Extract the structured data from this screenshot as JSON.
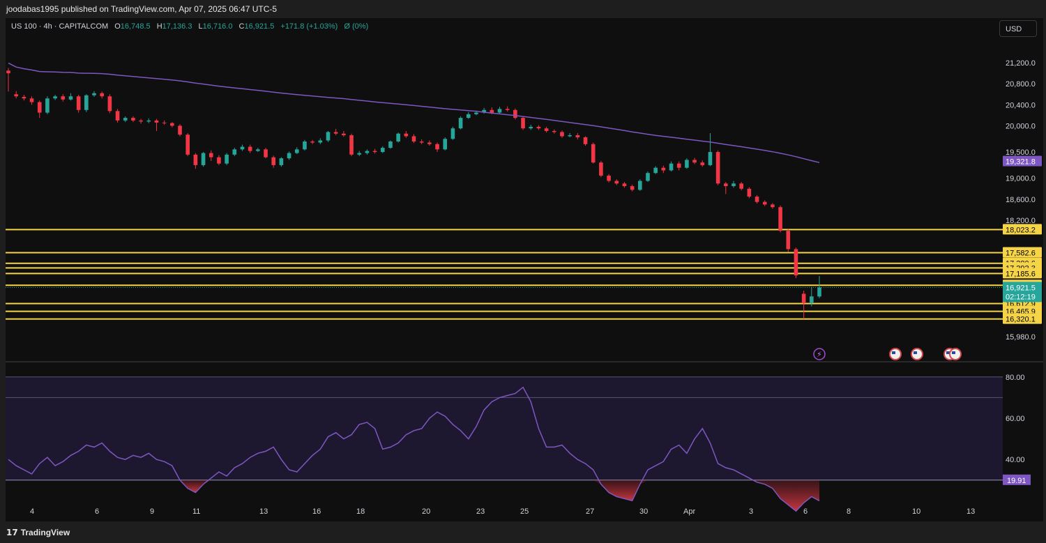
{
  "publish_info": "joodabas1995 published on TradingView.com, Apr 07, 2025 06:47 UTC-5",
  "legend": {
    "symbol": "US 100 · 4h · CAPITALCOM",
    "open_label": "O",
    "open": "16,748.5",
    "high_label": "H",
    "high": "17,136.3",
    "low_label": "L",
    "low": "16,716.0",
    "close_label": "C",
    "close": "16,921.5",
    "change": "+171.8 (+1.03%)",
    "extra": "Ø (0%)"
  },
  "currency_button": "USD",
  "footer_brand": "TradingView",
  "colors": {
    "background": "#0f0f0f",
    "candle_up": "#26a69a",
    "candle_down": "#f23645",
    "ma_line": "#7e57c2",
    "levels": "#f5d547",
    "rsi_line": "#7e57c2",
    "rsi_oversold_fill": "#b22833",
    "price_badge": "#26a69a"
  },
  "icons": [
    "lightning-icon",
    "us-flag-icon"
  ],
  "chart_data": {
    "type": "candlestick",
    "price_axis_ticks": [
      "21,200.0",
      "20,800.0",
      "20,400.0",
      "20,000.0",
      "19,500.0",
      "19,000.0",
      "18,600.0",
      "18,200.0",
      "15,980.0"
    ],
    "ma_label": "19,321.8",
    "horizontal_levels": [
      "18,023.2",
      "17,582.6",
      "17,380.6",
      "17,292.3",
      "17,185.6",
      "16,961.8",
      "16,612.9",
      "16,465.9",
      "16,320.1"
    ],
    "current_price": "16,921.5",
    "countdown": "02:12:19",
    "x_ticks": [
      "4",
      "6",
      "9",
      "11",
      "13",
      "16",
      "18",
      "20",
      "23",
      "25",
      "27",
      "30",
      "Apr",
      "3",
      "6",
      "8",
      "10",
      "13"
    ],
    "rsi": {
      "ticks": [
        "80.00",
        "60.00",
        "40.00"
      ],
      "current": "19.91",
      "upper": 70,
      "lower": 30,
      "range": [
        10,
        85
      ]
    },
    "candles": [
      [
        21050,
        21000,
        21100,
        20650
      ],
      [
        20600,
        20560,
        20660,
        20520
      ],
      [
        20550,
        20520,
        20590,
        20480
      ],
      [
        20520,
        20450,
        20560,
        20400
      ],
      [
        20450,
        20250,
        20480,
        20150
      ],
      [
        20250,
        20520,
        20560,
        20220
      ],
      [
        20520,
        20560,
        20590,
        20490
      ],
      [
        20560,
        20500,
        20600,
        20460
      ],
      [
        20500,
        20560,
        20620,
        20480
      ],
      [
        20560,
        20300,
        20590,
        20250
      ],
      [
        20300,
        20580,
        20600,
        20260
      ],
      [
        20580,
        20620,
        20660,
        20550
      ],
      [
        20620,
        20560,
        20650,
        20520
      ],
      [
        20560,
        20280,
        20600,
        20240
      ],
      [
        20280,
        20100,
        20320,
        20060
      ],
      [
        20100,
        20150,
        20180,
        20070
      ],
      [
        20150,
        20100,
        20180,
        20070
      ],
      [
        20100,
        20080,
        20130,
        20040
      ],
      [
        20080,
        20100,
        20140,
        20050
      ],
      [
        20100,
        20060,
        20130,
        19900
      ],
      [
        20060,
        20050,
        20100,
        20020
      ],
      [
        20050,
        20000,
        20070,
        19970
      ],
      [
        20000,
        19830,
        20030,
        19800
      ],
      [
        19830,
        19450,
        19860,
        19420
      ],
      [
        19450,
        19250,
        19480,
        19180
      ],
      [
        19250,
        19480,
        19500,
        19220
      ],
      [
        19480,
        19400,
        19530,
        19330
      ],
      [
        19400,
        19280,
        19440,
        19250
      ],
      [
        19280,
        19450,
        19480,
        19250
      ],
      [
        19450,
        19550,
        19580,
        19420
      ],
      [
        19550,
        19600,
        19640,
        19520
      ],
      [
        19600,
        19520,
        19640,
        19480
      ],
      [
        19520,
        19550,
        19580,
        19500
      ],
      [
        19550,
        19400,
        19580,
        19380
      ],
      [
        19400,
        19250,
        19430,
        19200
      ],
      [
        19250,
        19380,
        19400,
        19220
      ],
      [
        19380,
        19480,
        19510,
        19350
      ],
      [
        19480,
        19550,
        19590,
        19460
      ],
      [
        19550,
        19700,
        19730,
        19530
      ],
      [
        19700,
        19680,
        19730,
        19650
      ],
      [
        19680,
        19720,
        19760,
        19650
      ],
      [
        19720,
        19880,
        19900,
        19690
      ],
      [
        19880,
        19850,
        19940,
        19820
      ],
      [
        19850,
        19820,
        19900,
        19790
      ],
      [
        19820,
        19450,
        19850,
        19420
      ],
      [
        19450,
        19480,
        19520,
        19420
      ],
      [
        19480,
        19520,
        19550,
        19450
      ],
      [
        19520,
        19500,
        19560,
        19470
      ],
      [
        19500,
        19580,
        19610,
        19480
      ],
      [
        19580,
        19700,
        19720,
        19560
      ],
      [
        19700,
        19850,
        19870,
        19680
      ],
      [
        19850,
        19800,
        19900,
        19770
      ],
      [
        19800,
        19700,
        19840,
        19670
      ],
      [
        19700,
        19680,
        19740,
        19650
      ],
      [
        19680,
        19650,
        19720,
        19620
      ],
      [
        19650,
        19550,
        19680,
        19500
      ],
      [
        19550,
        19750,
        19780,
        19530
      ],
      [
        19750,
        19950,
        19980,
        19730
      ],
      [
        19950,
        20150,
        20180,
        19930
      ],
      [
        20150,
        20220,
        20260,
        20130
      ],
      [
        20220,
        20250,
        20290,
        20200
      ],
      [
        20250,
        20300,
        20340,
        20230
      ],
      [
        20300,
        20250,
        20350,
        20220
      ],
      [
        20250,
        20320,
        20360,
        20230
      ],
      [
        20320,
        20300,
        20370,
        20270
      ],
      [
        20300,
        20150,
        20330,
        20120
      ],
      [
        20150,
        19950,
        20180,
        19920
      ],
      [
        19950,
        19980,
        20020,
        19920
      ],
      [
        19980,
        19950,
        20010,
        19920
      ],
      [
        19950,
        19900,
        19980,
        19870
      ],
      [
        19900,
        19880,
        19930,
        19850
      ],
      [
        19880,
        19800,
        19910,
        19770
      ],
      [
        19800,
        19820,
        19860,
        19780
      ],
      [
        19820,
        19780,
        19860,
        19740
      ],
      [
        19780,
        19650,
        19800,
        19620
      ],
      [
        19650,
        19300,
        19680,
        19280
      ],
      [
        19300,
        19050,
        19330,
        19020
      ],
      [
        19050,
        18950,
        19080,
        18920
      ],
      [
        18950,
        18900,
        18980,
        18870
      ],
      [
        18900,
        18850,
        18930,
        18820
      ],
      [
        18850,
        18780,
        18880,
        18750
      ],
      [
        18780,
        18950,
        18980,
        18760
      ],
      [
        18950,
        19100,
        19130,
        18930
      ],
      [
        19100,
        19200,
        19230,
        19080
      ],
      [
        19200,
        19150,
        19240,
        19100
      ],
      [
        19150,
        19280,
        19320,
        19130
      ],
      [
        19280,
        19200,
        19320,
        19150
      ],
      [
        19200,
        19350,
        19380,
        19180
      ],
      [
        19350,
        19300,
        19390,
        19270
      ],
      [
        19300,
        19250,
        19340,
        19220
      ],
      [
        19250,
        19500,
        19860,
        19230
      ],
      [
        19500,
        18900,
        19530,
        18870
      ],
      [
        18900,
        18850,
        18930,
        18700
      ],
      [
        18850,
        18900,
        18950,
        18820
      ],
      [
        18900,
        18800,
        18930,
        18770
      ],
      [
        18800,
        18650,
        18830,
        18620
      ],
      [
        18650,
        18550,
        18680,
        18520
      ],
      [
        18550,
        18500,
        18580,
        18470
      ],
      [
        18500,
        18450,
        18530,
        18420
      ],
      [
        18450,
        18000,
        18480,
        17970
      ],
      [
        18000,
        17650,
        18030,
        17600
      ],
      [
        17650,
        17150,
        17680,
        17100
      ],
      [
        16800,
        16620,
        16860,
        16320
      ],
      [
        16620,
        16750,
        16930,
        16560
      ],
      [
        16748.5,
        16921.5,
        17136.3,
        16716.0
      ]
    ],
    "rsi_values": [
      40,
      37,
      35,
      33,
      38,
      41,
      37,
      39,
      42,
      44,
      47,
      46,
      48,
      44,
      41,
      40,
      42,
      41,
      43,
      40,
      39,
      37,
      30,
      26,
      24,
      28,
      31,
      34,
      32,
      36,
      38,
      41,
      43,
      44,
      46,
      40,
      35,
      34,
      38,
      42,
      45,
      51,
      53,
      50,
      52,
      57,
      58,
      55,
      45,
      46,
      48,
      52,
      54,
      55,
      60,
      63,
      61,
      57,
      54,
      50,
      56,
      64,
      68,
      70,
      71,
      72,
      75,
      68,
      55,
      46,
      46,
      47,
      43,
      40,
      38,
      35,
      28,
      24,
      22,
      21,
      20,
      28,
      35,
      37,
      39,
      45,
      47,
      43,
      50,
      55,
      48,
      38,
      36,
      35,
      33,
      31,
      29,
      28,
      26,
      21,
      18,
      15,
      19,
      22,
      20
    ]
  }
}
